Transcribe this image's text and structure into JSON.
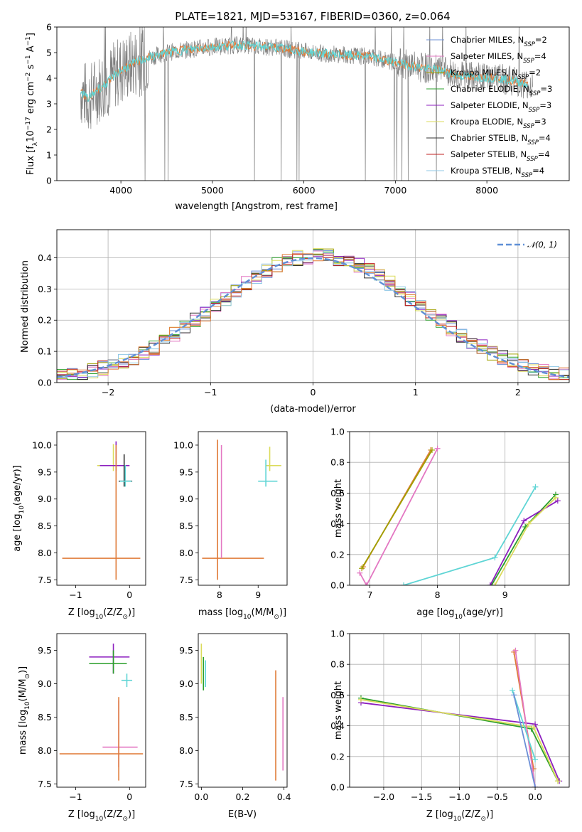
{
  "figure": {
    "title": "PLATE=1821, MJD=53167, FIBERID=0360, z=0.064"
  },
  "colors": {
    "chabrier_miles": "#6b8fd6",
    "salpeter_miles": "#e377c2",
    "kroupa_miles": "#a0a000",
    "chabrier_elodie": "#2ca02c",
    "salpeter_elodie": "#8c1fbf",
    "kroupa_elodie": "#dbdb5b",
    "chabrier_stelib": "#333333",
    "salpeter_stelib": "#c02020",
    "kroupa_stelib": "#8fc8e6",
    "data": "#808080",
    "model_orange": "#e07b39",
    "model_cyan": "#5fd5d5",
    "normal": "#5f8fd6"
  },
  "chart_data": [
    {
      "type": "line",
      "panel": "spectrum",
      "title": "PLATE=1821, MJD=53167, FIBERID=0360, z=0.064",
      "xlabel": "wavelength [Angstrom, rest frame]",
      "ylabel": "Flux [f",
      "ylabel_parts": [
        "Flux [f",
        "λ",
        "10",
        "−17",
        " erg cm",
        "−2",
        " s",
        "−1",
        " A",
        "−1",
        "]"
      ],
      "xlim": [
        3300,
        8900
      ],
      "ylim": [
        0,
        6
      ],
      "xticks": [
        "4000",
        "5000",
        "6000",
        "7000",
        "8000"
      ],
      "yticks": [
        "0",
        "1",
        "2",
        "3",
        "4",
        "5",
        "6"
      ],
      "legend_position": "right",
      "legend": [
        {
          "label": "Chabrier MILES, N",
          "sub": "SSP",
          "tail": "=2",
          "color": "#6b8fd6"
        },
        {
          "label": "Salpeter MILES, N",
          "sub": "SSP",
          "tail": "=4",
          "color": "#e377c2"
        },
        {
          "label": "Kroupa MILES, N",
          "sub": "SSP",
          "tail": "=2",
          "color": "#a0a000"
        },
        {
          "label": "Chabrier ELODIE, N",
          "sub": "SSP",
          "tail": "=3",
          "color": "#2ca02c"
        },
        {
          "label": "Salpeter ELODIE, N",
          "sub": "SSP",
          "tail": "=3",
          "color": "#8c1fbf"
        },
        {
          "label": "Kroupa ELODIE, N",
          "sub": "SSP",
          "tail": "=3",
          "color": "#dbdb5b"
        },
        {
          "label": "Chabrier STELIB, N",
          "sub": "SSP",
          "tail": "=4",
          "color": "#333333"
        },
        {
          "label": "Salpeter STELIB, N",
          "sub": "SSP",
          "tail": "=4",
          "color": "#c02020"
        },
        {
          "label": "Kroupa STELIB, N",
          "sub": "SSP",
          "tail": "=4",
          "color": "#8fc8e6"
        }
      ],
      "model_trend": {
        "x": [
          3550,
          3650,
          3750,
          3850,
          3950,
          4050,
          4150,
          4300,
          4500,
          4700,
          4900,
          5100,
          5300,
          5500,
          5700,
          5900,
          6100,
          6300,
          6500,
          6700,
          6900,
          7100,
          7300,
          7500,
          7700,
          7900,
          8100,
          8300,
          8500
        ],
        "y": [
          3.5,
          3.2,
          3.6,
          3.8,
          4.2,
          4.4,
          4.6,
          4.8,
          5.0,
          5.1,
          5.2,
          5.25,
          5.3,
          5.25,
          5.2,
          5.1,
          5.0,
          4.95,
          4.9,
          4.85,
          4.7,
          4.55,
          4.4,
          4.3,
          4.1,
          4.05,
          4.0,
          3.9,
          3.7
        ]
      }
    },
    {
      "type": "step",
      "panel": "residual_histogram",
      "xlabel": "(data-model)/error",
      "ylabel": "Normed distribution",
      "xlim": [
        -2.5,
        2.5
      ],
      "ylim": [
        0,
        0.49
      ],
      "xticks": [
        "−2",
        "−1",
        "0",
        "1",
        "2"
      ],
      "yticks": [
        "0.0",
        "0.1",
        "0.2",
        "0.3",
        "0.4"
      ],
      "grid": true,
      "legend": [
        {
          "label": "𝒩(0, 1)",
          "style": "dashed",
          "color": "#5f8fd6"
        }
      ],
      "bin_width": 0.1,
      "bin_start": -2.5
    },
    {
      "type": "errorbar",
      "panel": "age_vs_Z",
      "xlabel": "Z [log",
      "xlabel_parts": [
        "Z [log",
        "10",
        "(Z/Z",
        "⊙",
        ")]"
      ],
      "ylabel_parts": [
        "age  [log",
        "10",
        "(age/yr)]"
      ],
      "xlim": [
        -1.35,
        0.3
      ],
      "ylim": [
        7.4,
        10.25
      ],
      "xticks": [
        "−1",
        "0"
      ],
      "yticks": [
        "7.5",
        "8.0",
        "8.5",
        "9.0",
        "9.5",
        "10.0"
      ],
      "points": [
        {
          "x": -0.3,
          "y": 9.62,
          "xerr": [
            0.3,
            0.3
          ],
          "yerr": [
            0.1,
            0.4
          ],
          "color": "#dbdb5b"
        },
        {
          "x": -0.25,
          "y": 9.62,
          "xerr": [
            0.3,
            0.25
          ],
          "yerr": [
            0.1,
            0.45
          ],
          "color": "#8c1fbf"
        },
        {
          "x": -0.1,
          "y": 9.33,
          "xerr": [
            0.1,
            0.15
          ],
          "yerr": [
            0.1,
            0.5
          ],
          "color": "#333333"
        },
        {
          "x": -0.08,
          "y": 9.33,
          "xerr": [
            0.1,
            0.12
          ],
          "yerr": [
            0.1,
            0.3
          ],
          "color": "#5fd5d5"
        },
        {
          "x": -0.25,
          "y": 7.9,
          "xerr": [
            1.0,
            0.45
          ],
          "yerr": [
            0.4,
            2.1
          ],
          "color": "#e07b39"
        }
      ]
    },
    {
      "type": "errorbar",
      "panel": "age_vs_mass",
      "xlabel_parts": [
        "mass [log",
        "10",
        "(M/M",
        "⊙",
        ")]"
      ],
      "xlim": [
        7.45,
        9.75
      ],
      "ylim": [
        7.4,
        10.25
      ],
      "xticks": [
        "8",
        "9"
      ],
      "yticks": [
        "7.5",
        "8.0",
        "8.5",
        "9.0",
        "9.5",
        "10.0"
      ],
      "points": [
        {
          "x": 9.3,
          "y": 9.62,
          "xerr": [
            0.1,
            0.3
          ],
          "yerr": [
            0.1,
            0.35
          ],
          "color": "#dbdb5b"
        },
        {
          "x": 9.2,
          "y": 9.33,
          "xerr": [
            0.2,
            0.3
          ],
          "yerr": [
            0.1,
            0.4
          ],
          "color": "#5fd5d5"
        },
        {
          "x": 7.95,
          "y": 7.9,
          "xerr": [
            0.4,
            1.2
          ],
          "yerr": [
            0.4,
            2.2
          ],
          "color": "#e07b39"
        },
        {
          "x": 8.05,
          "y": 7.9,
          "xerr": [
            0.0,
            0.0
          ],
          "yerr": [
            0.0,
            2.1
          ],
          "color": "#e377c2"
        }
      ]
    },
    {
      "type": "line",
      "panel": "massweight_vs_age",
      "xlabel_parts": [
        "age  [log",
        "10",
        "(age/yr)]"
      ],
      "ylabel": "mass weight",
      "xlim": [
        6.7,
        9.95
      ],
      "ylim": [
        0,
        1
      ],
      "xticks": [
        "7",
        "8",
        "9"
      ],
      "yticks": [
        "0.0",
        "0.2",
        "0.4",
        "0.6",
        "0.8",
        "1.0"
      ],
      "grid": true,
      "series": [
        {
          "color": "#e07b39",
          "x": [
            6.9,
            7.9
          ],
          "y": [
            0.12,
            0.88
          ]
        },
        {
          "color": "#a0a000",
          "x": [
            6.88,
            7.92
          ],
          "y": [
            0.11,
            0.88
          ]
        },
        {
          "color": "#e377c2",
          "x": [
            6.85,
            6.95,
            8.0
          ],
          "y": [
            0.08,
            0.0,
            0.89
          ]
        },
        {
          "color": "#5fd5d5",
          "x": [
            7.5,
            8.85,
            9.45
          ],
          "y": [
            0.0,
            0.18,
            0.64
          ]
        },
        {
          "color": "#2ca02c",
          "x": [
            8.8,
            9.3,
            9.75
          ],
          "y": [
            0.0,
            0.38,
            0.59
          ]
        },
        {
          "color": "#8c1fbf",
          "x": [
            8.78,
            9.28,
            9.78
          ],
          "y": [
            0.0,
            0.42,
            0.55
          ]
        },
        {
          "color": "#dbdb5b",
          "x": [
            8.85,
            9.35,
            9.75
          ],
          "y": [
            0.0,
            0.4,
            0.57
          ]
        }
      ]
    },
    {
      "type": "errorbar",
      "panel": "mass_vs_Z",
      "xlabel_parts": [
        "Z [log",
        "10",
        "(Z/Z",
        "⊙",
        ")]"
      ],
      "ylabel_parts": [
        "mass [log",
        "10",
        "(M/M",
        "⊙",
        ")]"
      ],
      "xlim": [
        -1.35,
        0.3
      ],
      "ylim": [
        7.45,
        9.75
      ],
      "xticks": [
        "−1",
        "0"
      ],
      "yticks": [
        "7.5",
        "8.0",
        "8.5",
        "9.0",
        "9.5"
      ],
      "points": [
        {
          "x": -0.3,
          "y": 9.4,
          "xerr": [
            0.45,
            0.3
          ],
          "yerr": [
            0.25,
            0.2
          ],
          "color": "#8c1fbf"
        },
        {
          "x": -0.3,
          "y": 9.3,
          "xerr": [
            0.45,
            0.25
          ],
          "yerr": [
            0.15,
            0.2
          ],
          "color": "#2ca02c"
        },
        {
          "x": -0.05,
          "y": 9.05,
          "xerr": [
            0.1,
            0.1
          ],
          "yerr": [
            0.1,
            0.1
          ],
          "color": "#5fd5d5"
        },
        {
          "x": -0.2,
          "y": 8.05,
          "xerr": [
            0.3,
            0.35
          ],
          "yerr": [
            0.3,
            0.7
          ],
          "color": "#e377c2"
        },
        {
          "x": -0.2,
          "y": 7.95,
          "xerr": [
            1.1,
            0.45
          ],
          "yerr": [
            0.4,
            0.85
          ],
          "color": "#e07b39"
        }
      ]
    },
    {
      "type": "errorbar",
      "panel": "mass_vs_EBV",
      "xlabel": "E(B-V)",
      "xlim": [
        -0.015,
        0.415
      ],
      "ylim": [
        7.45,
        9.75
      ],
      "xticks": [
        "0.0",
        "0.2",
        "0.4"
      ],
      "yticks": [
        "7.5",
        "8.0",
        "8.5",
        "9.0",
        "9.5"
      ],
      "points": [
        {
          "x": 0.0,
          "y": 9.3,
          "yerr": [
            0.3,
            0.3
          ],
          "color": "#dbdb5b"
        },
        {
          "x": 0.01,
          "y": 9.1,
          "yerr": [
            0.2,
            0.3
          ],
          "color": "#2ca02c"
        },
        {
          "x": 0.02,
          "y": 9.05,
          "yerr": [
            0.1,
            0.3
          ],
          "color": "#5fd5d5"
        },
        {
          "x": 0.36,
          "y": 8.4,
          "yerr": [
            0.85,
            0.8
          ],
          "color": "#e07b39"
        },
        {
          "x": 0.395,
          "y": 8.25,
          "yerr": [
            0.55,
            0.55
          ],
          "color": "#e377c2"
        }
      ]
    },
    {
      "type": "line",
      "panel": "massweight_vs_Z",
      "xlabel_parts": [
        "Z [log",
        "10",
        "(Z/Z",
        "⊙",
        ")]"
      ],
      "ylabel": "mass weight",
      "xlim": [
        -2.45,
        0.45
      ],
      "ylim": [
        0,
        1
      ],
      "xticks": [
        "−2.0",
        "−1.5",
        "−1.0",
        "−0.5",
        "0.0"
      ],
      "yticks": [
        "0.0",
        "0.2",
        "0.4",
        "0.6",
        "0.8",
        "1.0"
      ],
      "grid": true,
      "series": [
        {
          "color": "#2ca02c",
          "x": [
            -2.3,
            -0.05,
            0.3
          ],
          "y": [
            0.58,
            0.38,
            0.04
          ]
        },
        {
          "color": "#8c1fbf",
          "x": [
            -2.3,
            0.0,
            0.32
          ],
          "y": [
            0.55,
            0.41,
            0.04
          ]
        },
        {
          "color": "#dbdb5b",
          "x": [
            -2.3,
            -0.02,
            0.3
          ],
          "y": [
            0.57,
            0.39,
            0.04
          ]
        },
        {
          "color": "#e07b39",
          "x": [
            -0.28,
            -0.02
          ],
          "y": [
            0.88,
            0.12
          ]
        },
        {
          "color": "#e377c2",
          "x": [
            -0.26,
            0.0
          ],
          "y": [
            0.89,
            0.0
          ]
        },
        {
          "color": "#5fd5d5",
          "x": [
            -0.3,
            0.0
          ],
          "y": [
            0.63,
            0.18
          ]
        },
        {
          "color": "#6b8fd6",
          "x": [
            -0.28,
            0.0
          ],
          "y": [
            0.6,
            0.0
          ]
        }
      ]
    }
  ]
}
